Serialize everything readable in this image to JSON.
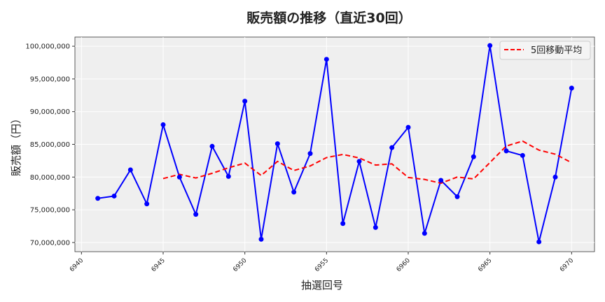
{
  "chart_data": {
    "type": "line",
    "title": "販売額の推移（直近30回）",
    "xlabel": "抽選回号",
    "ylabel": "販売額（円）",
    "xlim": [
      6939.6,
      6971.4
    ],
    "ylim": [
      68600000,
      101400000
    ],
    "xticks": [
      6940,
      6945,
      6950,
      6955,
      6960,
      6965,
      6970
    ],
    "yticks": [
      70000000,
      75000000,
      80000000,
      85000000,
      90000000,
      95000000,
      100000000
    ],
    "ytick_labels": [
      "70,000,000",
      "75,000,000",
      "80,000,000",
      "85,000,000",
      "90,000,000",
      "95,000,000",
      "100,000,000"
    ],
    "grid": true,
    "legend": "top-right",
    "x": [
      6941,
      6942,
      6943,
      6944,
      6945,
      6946,
      6947,
      6948,
      6949,
      6950,
      6951,
      6952,
      6953,
      6954,
      6955,
      6956,
      6957,
      6958,
      6959,
      6960,
      6961,
      6962,
      6963,
      6964,
      6965,
      6966,
      6967,
      6968,
      6969,
      6970
    ],
    "series": [
      {
        "name": "販売額",
        "color": "#0000ff",
        "values": [
          76750000,
          77100000,
          81100000,
          75900000,
          88000000,
          80000000,
          74300000,
          84700000,
          80100000,
          91600000,
          70500000,
          85100000,
          77700000,
          83600000,
          98000000,
          72900000,
          82400000,
          72300000,
          84500000,
          87600000,
          71400000,
          79500000,
          77000000,
          83100000,
          100100000,
          84000000,
          83300000,
          70100000,
          80000000,
          93600000
        ]
      },
      {
        "name": "5回移動平均",
        "color": "#ff0000",
        "window": 5
      }
    ]
  }
}
